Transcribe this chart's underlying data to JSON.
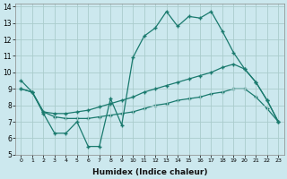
{
  "title": "",
  "xlabel": "Humidex (Indice chaleur)",
  "bg_color": "#cce8ee",
  "grid_color": "#aacccc",
  "line_color": "#1a7a6e",
  "xlim": [
    -0.5,
    23.5
  ],
  "ylim": [
    5,
    14.2
  ],
  "xticks": [
    0,
    1,
    2,
    3,
    4,
    5,
    6,
    7,
    8,
    9,
    10,
    11,
    12,
    13,
    14,
    15,
    16,
    17,
    18,
    19,
    20,
    21,
    22,
    23
  ],
  "yticks": [
    5,
    6,
    7,
    8,
    9,
    10,
    11,
    12,
    13,
    14
  ],
  "line1_x": [
    0,
    1,
    2,
    3,
    4,
    5,
    6,
    7,
    8,
    9,
    10,
    11,
    12,
    13,
    14,
    15,
    16,
    17,
    18,
    19,
    20,
    21,
    22,
    23
  ],
  "line1_y": [
    9.5,
    8.8,
    7.5,
    6.3,
    6.3,
    7.0,
    5.5,
    5.5,
    8.4,
    6.8,
    10.9,
    12.2,
    12.7,
    13.7,
    12.8,
    13.4,
    13.3,
    13.7,
    12.5,
    11.2,
    10.2,
    9.4,
    8.3,
    7.0
  ],
  "line2_x": [
    0,
    1,
    2,
    3,
    4,
    5,
    6,
    7,
    8,
    9,
    10,
    11,
    12,
    13,
    14,
    15,
    16,
    17,
    18,
    19,
    20,
    21,
    22,
    23
  ],
  "line2_y": [
    9.0,
    8.8,
    7.6,
    7.5,
    7.5,
    7.6,
    7.7,
    7.9,
    8.1,
    8.3,
    8.5,
    8.8,
    9.0,
    9.2,
    9.4,
    9.6,
    9.8,
    10.0,
    10.3,
    10.5,
    10.2,
    9.4,
    8.3,
    7.0
  ],
  "line3_x": [
    0,
    1,
    2,
    3,
    4,
    5,
    6,
    7,
    8,
    9,
    10,
    11,
    12,
    13,
    14,
    15,
    16,
    17,
    18,
    19,
    20,
    21,
    22,
    23
  ],
  "line3_y": [
    9.0,
    8.8,
    7.6,
    7.3,
    7.2,
    7.2,
    7.2,
    7.3,
    7.4,
    7.5,
    7.6,
    7.8,
    8.0,
    8.1,
    8.3,
    8.4,
    8.5,
    8.7,
    8.8,
    9.0,
    9.0,
    8.5,
    7.8,
    7.0
  ],
  "marker": "+",
  "markersize": 3,
  "linewidth": 0.9
}
